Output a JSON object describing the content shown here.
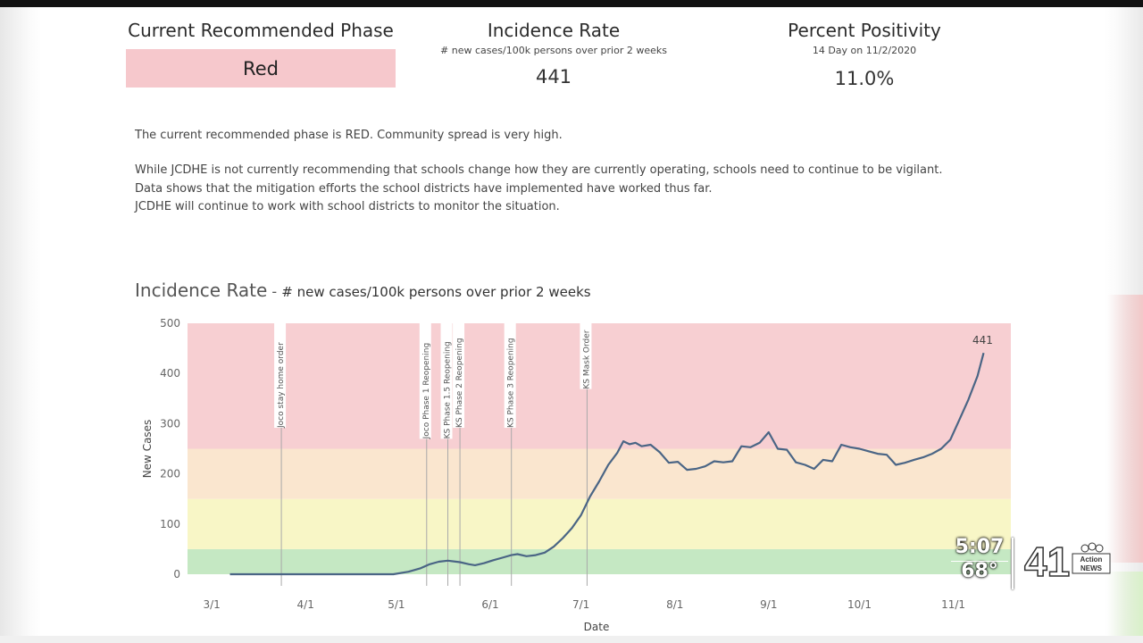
{
  "kpis": {
    "phase": {
      "title": "Current Recommended Phase",
      "value": "Red"
    },
    "incidence": {
      "title": "Incidence Rate",
      "subtitle": "# new cases/100k persons over prior 2 weeks",
      "value": "441"
    },
    "positivity": {
      "title": "Percent Positivity",
      "subtitle": "14 Day on 11/2/2020",
      "value": "11.0%"
    }
  },
  "description": [
    "The current recommended phase is RED.  Community spread is very high.",
    "While JCDHE is not currently recommending that schools change how they are currently operating, schools need to continue to be vigilant.",
    "Data shows that the mitigation efforts the school districts have implemented have worked thus far.",
    "JCDHE will continue to work with school districts to monitor the situation."
  ],
  "chart_title": {
    "main": "Incidence Rate",
    "separator": "-",
    "sub": "# new cases/100k persons over prior 2 weeks"
  },
  "chart_data": {
    "type": "line",
    "title": "Incidence Rate - # new cases/100k persons over prior 2 weeks",
    "xlabel": "Date",
    "ylabel": "New Cases",
    "xlim": [
      "2020-02-22",
      "2020-11-20"
    ],
    "ylim": [
      0,
      500
    ],
    "yticks": [
      0,
      100,
      200,
      300,
      400,
      500
    ],
    "xticks": [
      {
        "date": "2020-03-01",
        "label": "3/1"
      },
      {
        "date": "2020-04-01",
        "label": "4/1"
      },
      {
        "date": "2020-05-01",
        "label": "5/1"
      },
      {
        "date": "2020-06-01",
        "label": "6/1"
      },
      {
        "date": "2020-07-01",
        "label": "7/1"
      },
      {
        "date": "2020-08-01",
        "label": "8/1"
      },
      {
        "date": "2020-09-01",
        "label": "9/1"
      },
      {
        "date": "2020-10-01",
        "label": "10/1"
      },
      {
        "date": "2020-11-01",
        "label": "11/1"
      }
    ],
    "bands": [
      {
        "from": 0,
        "to": 50,
        "color": "#c5e8c3"
      },
      {
        "from": 50,
        "to": 150,
        "color": "#f8f6c6"
      },
      {
        "from": 150,
        "to": 250,
        "color": "#fae6cf"
      },
      {
        "from": 250,
        "to": 500,
        "color": "#f7cfd2"
      }
    ],
    "events": [
      {
        "date": "2020-03-24",
        "label": "Joco stay home order"
      },
      {
        "date": "2020-05-11",
        "label": "Joco Phase 1 Reopening"
      },
      {
        "date": "2020-05-18",
        "label": "KS Phase 1.5 Reopening"
      },
      {
        "date": "2020-05-22",
        "label": "KS Phase 2 Reopening"
      },
      {
        "date": "2020-06-08",
        "label": "KS Phase 3 Reopening"
      },
      {
        "date": "2020-07-03",
        "label": "KS Mask Order"
      }
    ],
    "end_label": "441",
    "series": [
      {
        "color": "#4a6585",
        "points": [
          [
            "2020-03-07",
            0
          ],
          [
            "2020-04-01",
            0
          ],
          [
            "2020-04-30",
            0
          ],
          [
            "2020-05-05",
            5
          ],
          [
            "2020-05-09",
            12
          ],
          [
            "2020-05-12",
            20
          ],
          [
            "2020-05-15",
            25
          ],
          [
            "2020-05-18",
            27
          ],
          [
            "2020-05-22",
            24
          ],
          [
            "2020-05-25",
            20
          ],
          [
            "2020-05-27",
            18
          ],
          [
            "2020-05-30",
            22
          ],
          [
            "2020-06-02",
            28
          ],
          [
            "2020-06-05",
            33
          ],
          [
            "2020-06-08",
            38
          ],
          [
            "2020-06-10",
            40
          ],
          [
            "2020-06-13",
            36
          ],
          [
            "2020-06-16",
            38
          ],
          [
            "2020-06-19",
            43
          ],
          [
            "2020-06-22",
            55
          ],
          [
            "2020-06-25",
            72
          ],
          [
            "2020-06-28",
            92
          ],
          [
            "2020-07-01",
            118
          ],
          [
            "2020-07-04",
            155
          ],
          [
            "2020-07-07",
            185
          ],
          [
            "2020-07-10",
            218
          ],
          [
            "2020-07-13",
            242
          ],
          [
            "2020-07-15",
            265
          ],
          [
            "2020-07-17",
            259
          ],
          [
            "2020-07-19",
            262
          ],
          [
            "2020-07-21",
            255
          ],
          [
            "2020-07-24",
            258
          ],
          [
            "2020-07-27",
            243
          ],
          [
            "2020-07-30",
            222
          ],
          [
            "2020-08-02",
            224
          ],
          [
            "2020-08-05",
            208
          ],
          [
            "2020-08-08",
            210
          ],
          [
            "2020-08-11",
            215
          ],
          [
            "2020-08-14",
            225
          ],
          [
            "2020-08-17",
            223
          ],
          [
            "2020-08-20",
            225
          ],
          [
            "2020-08-23",
            255
          ],
          [
            "2020-08-26",
            253
          ],
          [
            "2020-08-29",
            262
          ],
          [
            "2020-09-01",
            283
          ],
          [
            "2020-09-04",
            250
          ],
          [
            "2020-09-07",
            248
          ],
          [
            "2020-09-10",
            223
          ],
          [
            "2020-09-13",
            218
          ],
          [
            "2020-09-16",
            210
          ],
          [
            "2020-09-19",
            228
          ],
          [
            "2020-09-22",
            225
          ],
          [
            "2020-09-25",
            258
          ],
          [
            "2020-09-28",
            253
          ],
          [
            "2020-10-01",
            250
          ],
          [
            "2020-10-04",
            245
          ],
          [
            "2020-10-07",
            240
          ],
          [
            "2020-10-10",
            238
          ],
          [
            "2020-10-13",
            218
          ],
          [
            "2020-10-16",
            222
          ],
          [
            "2020-10-19",
            228
          ],
          [
            "2020-10-22",
            233
          ],
          [
            "2020-10-25",
            240
          ],
          [
            "2020-10-28",
            250
          ],
          [
            "2020-10-31",
            268
          ],
          [
            "2020-11-03",
            308
          ],
          [
            "2020-11-06",
            348
          ],
          [
            "2020-11-09",
            395
          ],
          [
            "2020-11-11",
            441
          ]
        ]
      }
    ]
  },
  "overlay": {
    "time": "5:07",
    "temp": "68°",
    "channel_number": "41",
    "brand": "Action NEWS"
  }
}
